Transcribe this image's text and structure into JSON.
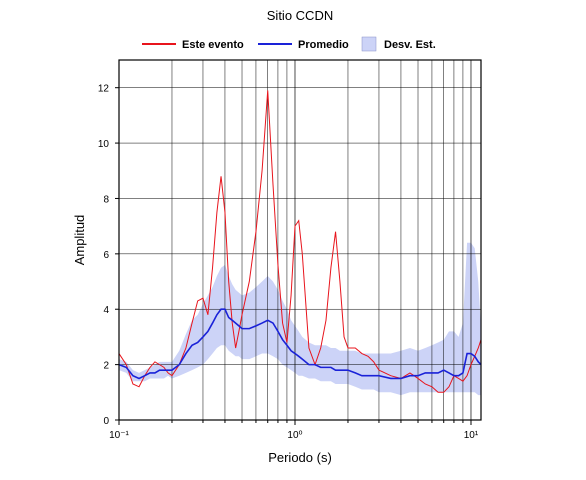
{
  "chart_data": {
    "type": "line",
    "title": "Sitio CCDN",
    "x_label": "Periodo (s)",
    "y_label": "Amplitud",
    "log_x": true,
    "grid": true,
    "xlim": [
      0.1,
      11.4
    ],
    "ylim": [
      0,
      13
    ],
    "xticks": [
      {
        "value": 0.1,
        "label": "10⁻¹"
      },
      {
        "value": 1,
        "label": "10⁰"
      },
      {
        "value": 10,
        "label": "10¹"
      }
    ],
    "xminorticks": [
      0.2,
      0.3,
      0.4,
      0.5,
      0.6,
      0.7,
      0.8,
      0.9,
      2,
      3,
      4,
      5,
      6,
      7,
      8,
      9
    ],
    "yticks": [
      0,
      2,
      4,
      6,
      8,
      10,
      12
    ],
    "x": [
      0.1,
      0.11,
      0.12,
      0.13,
      0.14,
      0.15,
      0.16,
      0.17,
      0.18,
      0.19,
      0.2,
      0.22,
      0.24,
      0.26,
      0.28,
      0.3,
      0.32,
      0.34,
      0.36,
      0.38,
      0.4,
      0.42,
      0.44,
      0.46,
      0.48,
      0.5,
      0.55,
      0.6,
      0.65,
      0.7,
      0.75,
      0.8,
      0.85,
      0.9,
      0.95,
      1.0,
      1.05,
      1.1,
      1.2,
      1.3,
      1.4,
      1.5,
      1.6,
      1.7,
      1.8,
      1.9,
      2.0,
      2.2,
      2.4,
      2.6,
      2.8,
      3.0,
      3.5,
      4,
      4.5,
      5,
      5.5,
      6,
      6.5,
      7,
      7.5,
      8,
      8.5,
      9,
      9.5,
      10,
      10.5,
      11,
      11.4
    ],
    "band": {
      "name": "Desv. Est.",
      "color": "#ccd3f7",
      "lower": [
        1.8,
        1.7,
        1.4,
        1.4,
        1.4,
        1.5,
        1.5,
        1.5,
        1.5,
        1.6,
        1.5,
        1.6,
        1.7,
        1.8,
        1.9,
        2.0,
        2.2,
        2.4,
        2.6,
        2.7,
        2.7,
        2.5,
        2.4,
        2.3,
        2.3,
        2.2,
        2.2,
        2.3,
        2.4,
        2.4,
        2.3,
        2.2,
        2.0,
        1.9,
        1.8,
        1.7,
        1.6,
        1.6,
        1.5,
        1.5,
        1.4,
        1.4,
        1.4,
        1.3,
        1.3,
        1.3,
        1.3,
        1.2,
        1.1,
        1.1,
        1.1,
        1.0,
        1.0,
        0.9,
        1.0,
        1.0,
        1.0,
        1.0,
        1.0,
        1.0,
        1.0,
        1.0,
        1.0,
        1.0,
        1.0,
        1.0,
        1.0,
        0.9,
        0.9
      ],
      "upper": [
        2.2,
        2.1,
        1.8,
        1.7,
        1.8,
        1.9,
        2.0,
        2.1,
        2.1,
        2.1,
        2.1,
        2.5,
        3.1,
        3.6,
        3.8,
        4.2,
        4.5,
        4.8,
        5.2,
        5.5,
        5.6,
        5.2,
        4.9,
        4.7,
        4.6,
        4.5,
        4.6,
        4.8,
        5.0,
        5.2,
        5.0,
        4.7,
        4.3,
        4.0,
        3.6,
        3.4,
        3.2,
        3.0,
        2.8,
        2.7,
        2.7,
        2.7,
        2.6,
        2.6,
        2.5,
        2.5,
        2.5,
        2.5,
        2.4,
        2.4,
        2.4,
        2.4,
        2.4,
        2.5,
        2.6,
        2.5,
        2.6,
        2.7,
        2.8,
        2.9,
        3.2,
        3.2,
        3.0,
        3.5,
        6.4,
        6.4,
        6.2,
        5.0,
        3.3
      ]
    },
    "series": [
      {
        "name": "Este evento",
        "color": "#e8141c",
        "values": [
          2.4,
          2.0,
          1.3,
          1.2,
          1.6,
          1.9,
          2.1,
          2.0,
          1.9,
          1.7,
          1.6,
          2.0,
          2.6,
          3.5,
          4.3,
          4.4,
          3.8,
          5.5,
          7.5,
          8.8,
          7.5,
          5.0,
          3.5,
          2.6,
          3.2,
          3.8,
          5.0,
          6.8,
          9.0,
          11.9,
          8.5,
          5.6,
          3.5,
          2.8,
          4.5,
          7.0,
          7.2,
          6.0,
          2.6,
          2.0,
          2.6,
          3.6,
          5.5,
          6.8,
          5.0,
          3.0,
          2.6,
          2.6,
          2.4,
          2.3,
          2.1,
          1.8,
          1.6,
          1.5,
          1.7,
          1.5,
          1.3,
          1.2,
          1.0,
          1.0,
          1.2,
          1.6,
          1.5,
          1.4,
          1.6,
          2.0,
          2.3,
          2.6,
          2.9
        ]
      },
      {
        "name": "Promedio",
        "color": "#1a22d8",
        "values": [
          2.0,
          1.9,
          1.6,
          1.5,
          1.6,
          1.7,
          1.7,
          1.8,
          1.8,
          1.8,
          1.8,
          2.0,
          2.4,
          2.7,
          2.8,
          3.0,
          3.2,
          3.5,
          3.8,
          4.0,
          4.0,
          3.7,
          3.6,
          3.5,
          3.4,
          3.3,
          3.3,
          3.4,
          3.5,
          3.6,
          3.5,
          3.2,
          2.9,
          2.7,
          2.5,
          2.4,
          2.3,
          2.2,
          2.0,
          2.0,
          1.9,
          1.9,
          1.9,
          1.8,
          1.8,
          1.8,
          1.8,
          1.7,
          1.6,
          1.6,
          1.6,
          1.6,
          1.5,
          1.5,
          1.6,
          1.6,
          1.7,
          1.7,
          1.7,
          1.8,
          1.7,
          1.6,
          1.6,
          1.7,
          2.4,
          2.4,
          2.3,
          2.1,
          2.0
        ]
      }
    ]
  }
}
